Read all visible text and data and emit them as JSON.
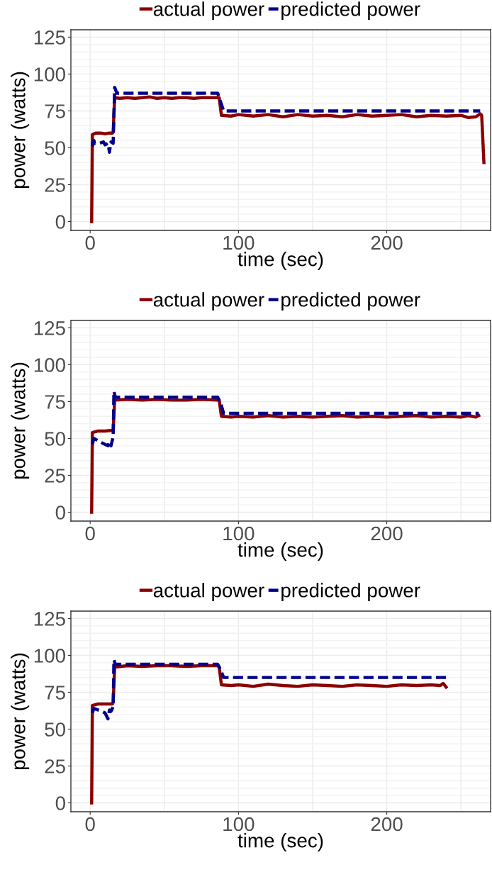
{
  "chart_data": [
    {
      "type": "line",
      "xlabel": "time (sec)",
      "ylabel": "power (watts)",
      "xlim": [
        -13,
        270
      ],
      "xticks": [
        0,
        100,
        200
      ],
      "ylim": [
        -6,
        130
      ],
      "yticks": [
        0,
        25,
        50,
        75,
        100,
        125
      ],
      "grid": true,
      "legend": "top",
      "series": [
        {
          "name": "actual power",
          "color": "#8b0000",
          "line_style": "solid",
          "x": [
            1,
            1.5,
            4,
            7,
            10,
            13,
            15,
            15.5,
            16.5,
            20,
            25,
            30,
            35,
            40,
            45,
            50,
            55,
            60,
            65,
            70,
            75,
            80,
            85,
            87,
            88.5,
            95,
            100,
            110,
            120,
            130,
            140,
            150,
            160,
            170,
            180,
            190,
            200,
            210,
            220,
            230,
            240,
            250,
            255,
            260,
            263,
            264,
            265.5
          ],
          "values": [
            0,
            59,
            60,
            60,
            59.5,
            60,
            60,
            60.5,
            84,
            83.5,
            84,
            83.5,
            84,
            84.5,
            83.5,
            84,
            83.5,
            84,
            84,
            83.5,
            84,
            84,
            84,
            84,
            72,
            71.5,
            72.5,
            71.5,
            72.5,
            71,
            72.5,
            71.5,
            72,
            71,
            72.5,
            71.5,
            72,
            72.5,
            71,
            72,
            71.5,
            72,
            70.5,
            71,
            73,
            72,
            40
          ]
        },
        {
          "name": "predicted power",
          "color": "#00008b",
          "line_style": "dashed",
          "x": [
            1.5,
            2.5,
            3,
            6,
            9,
            10,
            12,
            13,
            14,
            15.5,
            16.5,
            18,
            86,
            88,
            90,
            263
          ],
          "values": [
            51,
            55,
            53,
            53,
            54,
            52,
            53,
            47,
            54,
            53,
            91,
            87,
            87,
            81,
            75,
            75
          ]
        }
      ]
    },
    {
      "type": "line",
      "xlabel": "time (sec)",
      "ylabel": "power (watts)",
      "xlim": [
        -13,
        270
      ],
      "xticks": [
        0,
        100,
        200
      ],
      "ylim": [
        -6,
        130
      ],
      "yticks": [
        0,
        25,
        50,
        75,
        100,
        125
      ],
      "grid": true,
      "legend": "top",
      "series": [
        {
          "name": "actual power",
          "color": "#8b0000",
          "line_style": "solid",
          "x": [
            1,
            1.5,
            5,
            10,
            15,
            15.5,
            16.5,
            25,
            35,
            45,
            55,
            65,
            75,
            86,
            87,
            88.5,
            95,
            100,
            110,
            120,
            130,
            140,
            150,
            160,
            170,
            180,
            190,
            200,
            210,
            220,
            230,
            240,
            250,
            255,
            260,
            262
          ],
          "values": [
            0,
            54,
            55,
            55,
            55.5,
            55,
            76,
            76.5,
            76,
            76.5,
            76,
            76,
            76.5,
            76,
            76,
            65,
            64.5,
            65,
            64.5,
            65.5,
            64.5,
            65,
            64.5,
            65,
            65.5,
            64.5,
            65,
            64.5,
            65,
            65.5,
            64.5,
            65,
            64.5,
            65.5,
            64.5,
            65.5
          ]
        },
        {
          "name": "predicted power",
          "color": "#00008b",
          "line_style": "dashed",
          "x": [
            1.5,
            2.5,
            8,
            10,
            12,
            13,
            14,
            15,
            15.5,
            16,
            17,
            86,
            88,
            90,
            262
          ],
          "values": [
            46,
            50,
            47,
            46,
            45,
            48,
            45,
            49,
            51,
            82,
            78,
            78,
            74,
            67,
            67
          ]
        }
      ]
    },
    {
      "type": "line",
      "xlabel": "time (sec)",
      "ylabel": "power (watts)",
      "xlim": [
        -13,
        270
      ],
      "xticks": [
        0,
        100,
        200
      ],
      "ylim": [
        -6,
        130
      ],
      "yticks": [
        0,
        25,
        50,
        75,
        100,
        125
      ],
      "grid": true,
      "legend": "top",
      "series": [
        {
          "name": "actual power",
          "color": "#8b0000",
          "line_style": "solid",
          "x": [
            1,
            1.5,
            5,
            10,
            15,
            15.5,
            16.5,
            25,
            35,
            45,
            55,
            65,
            75,
            86,
            87,
            88.5,
            95,
            100,
            110,
            120,
            130,
            140,
            150,
            160,
            170,
            180,
            190,
            200,
            210,
            220,
            230,
            236,
            238,
            240
          ],
          "values": [
            0,
            66,
            67,
            67,
            67,
            68,
            92,
            93,
            92.5,
            93,
            93,
            92.5,
            93,
            93,
            92,
            80,
            79.5,
            80,
            79,
            80.5,
            79.5,
            79,
            80,
            79.5,
            79,
            80,
            79.5,
            79,
            80,
            79.5,
            80,
            79.5,
            81,
            78.5
          ]
        },
        {
          "name": "predicted power",
          "color": "#00008b",
          "line_style": "dashed",
          "x": [
            1.5,
            2.5,
            8,
            10,
            12,
            13,
            14,
            15,
            15.5,
            16,
            17,
            86,
            88,
            90,
            240
          ],
          "values": [
            61,
            64,
            62,
            61,
            57,
            63,
            62,
            64,
            65,
            97,
            94,
            94,
            90,
            85,
            85
          ]
        }
      ]
    }
  ]
}
